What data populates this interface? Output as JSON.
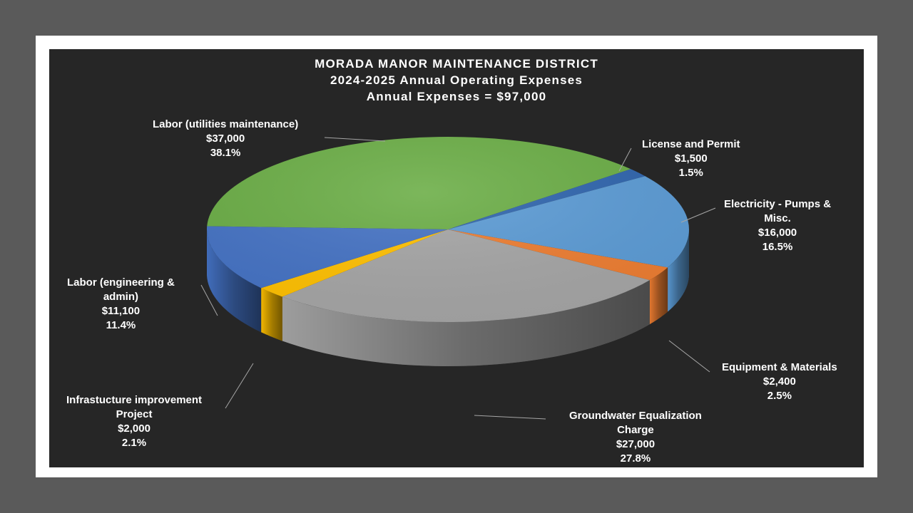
{
  "chart_data": {
    "type": "pie",
    "title": [
      "MORADA MANOR MAINTENANCE DISTRICT",
      "2024-2025 Annual Operating Expenses",
      "Annual Expenses = $97,000"
    ],
    "slices": [
      {
        "label": [
          "Labor (utilities maintenance)"
        ],
        "amount": "$37,000",
        "percent": "38.1%",
        "value": 37000,
        "color": "#6aad45"
      },
      {
        "label": [
          "License and Permit"
        ],
        "amount": "$1,500",
        "percent": "1.5%",
        "value": 1500,
        "color": "#2e64ad"
      },
      {
        "label": [
          "Electricity - Pumps &",
          "Misc."
        ],
        "amount": "$16,000",
        "percent": "16.5%",
        "value": 16000,
        "color": "#5b9bd5"
      },
      {
        "label": [
          "Equipment & Materials"
        ],
        "amount": "$2,400",
        "percent": "2.5%",
        "value": 2400,
        "color": "#ed7d31"
      },
      {
        "label": [
          "Groundwater Equalization",
          "Charge"
        ],
        "amount": "$27,000",
        "percent": "27.8%",
        "value": 27000,
        "color": "#a5a5a5"
      },
      {
        "label": [
          "Infrastucture improvement",
          "Project"
        ],
        "amount": "$2,000",
        "percent": "2.1%",
        "value": 2000,
        "color": "#ffc000"
      },
      {
        "label": [
          "Labor (engineering &",
          "admin)"
        ],
        "amount": "$11,100",
        "percent": "11.4%",
        "value": 11100,
        "color": "#4472c4"
      }
    ]
  }
}
